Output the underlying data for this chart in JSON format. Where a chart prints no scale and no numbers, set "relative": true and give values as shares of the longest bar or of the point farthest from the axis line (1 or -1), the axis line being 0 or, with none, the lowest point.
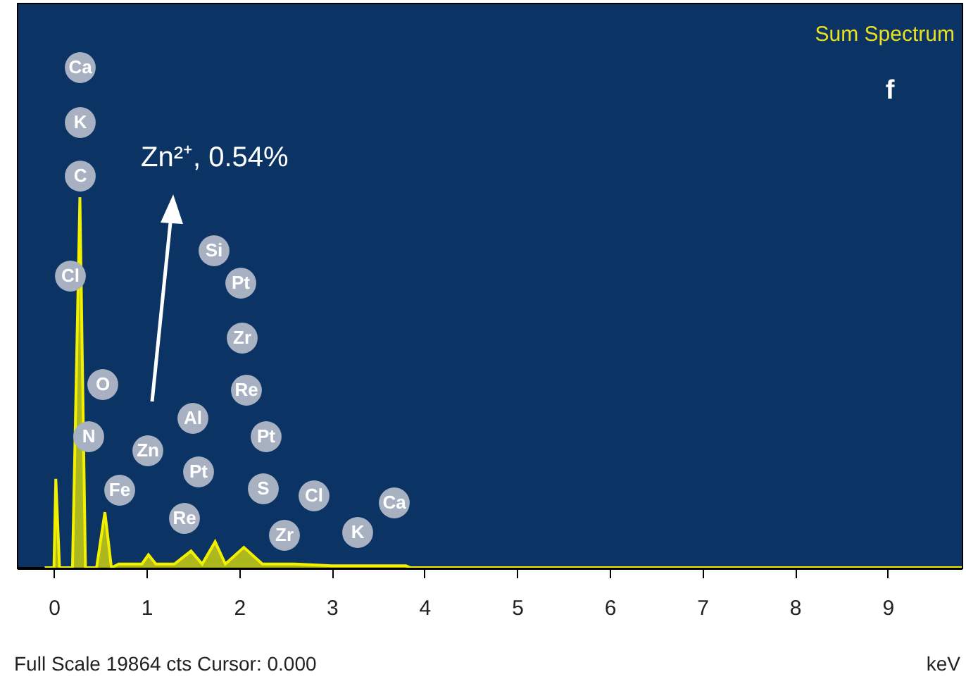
{
  "chart_data": {
    "type": "area",
    "title": "Sum Spectrum",
    "xlabel": "keV",
    "relative": true,
    "xlim": [
      -0.4,
      9.8
    ],
    "xticks": [
      0,
      1,
      2,
      3,
      4,
      5,
      6,
      7,
      8,
      9
    ],
    "x": [
      -0.1,
      0,
      0.02,
      0.06,
      0.2,
      0.28,
      0.34,
      0.46,
      0.55,
      0.62,
      0.7,
      0.95,
      1.02,
      1.1,
      1.3,
      1.48,
      1.6,
      1.74,
      1.85,
      2.05,
      2.25,
      2.6,
      3.0,
      3.8,
      3.85,
      9.8
    ],
    "series": [
      {
        "color": "#f2f000",
        "values": [
          0,
          0,
          0.24,
          0,
          0,
          1,
          0,
          0,
          0.15,
          0,
          0.01,
          0.01,
          0.035,
          0.01,
          0.01,
          0.045,
          0.01,
          0.07,
          0.01,
          0.055,
          0.01,
          0.01,
          0.005,
          0.005,
          0,
          0
        ]
      }
    ],
    "grid": false,
    "annotations": [
      "Ca",
      "K",
      "C",
      "Cl",
      "O",
      "N",
      "Fe",
      "Zn",
      "Al",
      "Pt",
      "Re",
      "Si",
      "Pt",
      "Zr",
      "Re",
      "Pt",
      "S",
      "Zr",
      "Cl",
      "K",
      "Ca",
      "Zn²⁺,      0.54%",
      "f",
      "Full Scale 19864 cts Cursor: 0.000"
    ]
  }
}
